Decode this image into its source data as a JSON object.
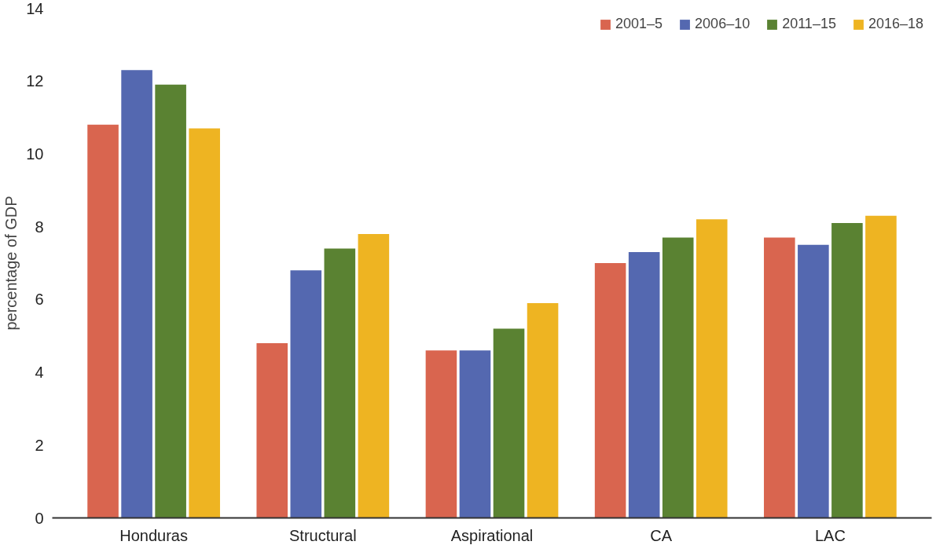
{
  "chart_data": {
    "type": "bar",
    "ylabel": "percentage of GDP",
    "categories": [
      "Honduras",
      "Structural",
      "Aspirational",
      "CA",
      "LAC"
    ],
    "series": [
      {
        "name": "2001–5",
        "color": "#d9654f",
        "values": [
          10.8,
          4.8,
          4.6,
          7.0,
          7.7
        ]
      },
      {
        "name": "2006–10",
        "color": "#5468b0",
        "values": [
          12.3,
          6.8,
          4.6,
          7.3,
          7.5
        ]
      },
      {
        "name": "2011–15",
        "color": "#5a8232",
        "values": [
          11.9,
          7.4,
          5.2,
          7.7,
          8.1
        ]
      },
      {
        "name": "2016–18",
        "color": "#eeb422",
        "values": [
          10.7,
          7.8,
          5.9,
          8.2,
          8.3
        ]
      }
    ],
    "ylim": [
      0,
      14
    ],
    "yticks": [
      0,
      2,
      4,
      6,
      8,
      10,
      12,
      14
    ],
    "grid": false,
    "legend": "top right"
  }
}
